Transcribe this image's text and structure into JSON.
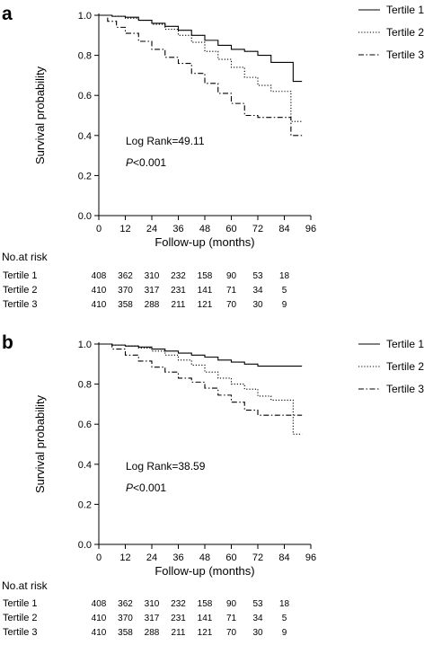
{
  "chart_data": [
    {
      "type": "line",
      "panel_label": "a",
      "xlabel": "Follow-up (months)",
      "ylabel": "Survival probability",
      "x_ticks": [
        0,
        12,
        24,
        36,
        48,
        60,
        72,
        84,
        96
      ],
      "y_ticks": [
        0.0,
        0.2,
        0.4,
        0.6,
        0.8,
        1.0
      ],
      "y_tick_labels": [
        "0.0",
        "0.2",
        "0.4",
        "0.6",
        "0.8",
        "1.0"
      ],
      "xlim": [
        0,
        96
      ],
      "ylim": [
        0,
        1.0
      ],
      "legend_position": "top-right",
      "annotation_logrank": "Log Rank=49.11",
      "annotation_p_italic": "P",
      "annotation_p_rest": "<0.001",
      "series": [
        {
          "name": "Tertile 1",
          "dash": "solid",
          "x": [
            0,
            6,
            12,
            18,
            24,
            30,
            36,
            42,
            48,
            54,
            60,
            66,
            72,
            78,
            84,
            88,
            92
          ],
          "y": [
            1.0,
            0.995,
            0.99,
            0.975,
            0.96,
            0.945,
            0.925,
            0.9,
            0.875,
            0.85,
            0.83,
            0.82,
            0.8,
            0.765,
            0.765,
            0.67,
            0.67
          ]
        },
        {
          "name": "Tertile 2",
          "dash": "dotted",
          "x": [
            0,
            6,
            12,
            18,
            24,
            30,
            36,
            42,
            48,
            54,
            60,
            66,
            72,
            78,
            84,
            87,
            90,
            92
          ],
          "y": [
            1.0,
            0.995,
            0.985,
            0.975,
            0.955,
            0.93,
            0.9,
            0.865,
            0.82,
            0.78,
            0.74,
            0.69,
            0.65,
            0.62,
            0.62,
            0.47,
            0.47,
            0.47
          ]
        },
        {
          "name": "Tertile 3",
          "dash": "dashdot",
          "x": [
            0,
            4,
            8,
            12,
            18,
            24,
            30,
            36,
            42,
            48,
            54,
            60,
            66,
            72,
            78,
            84,
            87,
            92
          ],
          "y": [
            1.0,
            0.97,
            0.94,
            0.91,
            0.87,
            0.83,
            0.79,
            0.76,
            0.71,
            0.66,
            0.61,
            0.56,
            0.5,
            0.49,
            0.49,
            0.49,
            0.4,
            0.4
          ]
        }
      ],
      "risk_table": {
        "title": "No.at risk",
        "rows": [
          {
            "label": "Tertile 1",
            "values": [
              408,
              362,
              310,
              232,
              158,
              90,
              53,
              18
            ]
          },
          {
            "label": "Tertile 2",
            "values": [
              410,
              370,
              317,
              231,
              141,
              71,
              34,
              5
            ]
          },
          {
            "label": "Tertile 3",
            "values": [
              410,
              358,
              288,
              211,
              121,
              70,
              30,
              9
            ]
          }
        ]
      }
    },
    {
      "type": "line",
      "panel_label": "b",
      "xlabel": "Follow-up (months)",
      "ylabel": "Survival probability",
      "x_ticks": [
        0,
        12,
        24,
        36,
        48,
        60,
        72,
        84,
        96
      ],
      "y_ticks": [
        0.0,
        0.2,
        0.4,
        0.6,
        0.8,
        1.0
      ],
      "y_tick_labels": [
        "0.0",
        "0.2",
        "0.4",
        "0.6",
        "0.8",
        "1.0"
      ],
      "xlim": [
        0,
        96
      ],
      "ylim": [
        0,
        1.0
      ],
      "legend_position": "top-right",
      "annotation_logrank": "Log Rank=38.59",
      "annotation_p_italic": "P",
      "annotation_p_rest": "<0.001",
      "series": [
        {
          "name": "Tertile 1",
          "dash": "solid",
          "x": [
            0,
            6,
            12,
            18,
            24,
            30,
            36,
            42,
            48,
            54,
            60,
            66,
            72,
            78,
            84,
            92
          ],
          "y": [
            1.0,
            0.995,
            0.99,
            0.985,
            0.975,
            0.965,
            0.955,
            0.945,
            0.935,
            0.92,
            0.91,
            0.9,
            0.89,
            0.89,
            0.89,
            0.89
          ]
        },
        {
          "name": "Tertile 2",
          "dash": "dotted",
          "x": [
            0,
            6,
            12,
            18,
            24,
            30,
            36,
            42,
            48,
            54,
            60,
            66,
            72,
            78,
            84,
            88,
            92
          ],
          "y": [
            1.0,
            0.995,
            0.99,
            0.98,
            0.965,
            0.945,
            0.92,
            0.895,
            0.86,
            0.83,
            0.8,
            0.775,
            0.74,
            0.72,
            0.72,
            0.55,
            0.55
          ]
        },
        {
          "name": "Tertile 3",
          "dash": "dashdot",
          "x": [
            0,
            6,
            12,
            18,
            24,
            30,
            36,
            42,
            48,
            54,
            60,
            66,
            72,
            78,
            84,
            92
          ],
          "y": [
            1.0,
            0.975,
            0.945,
            0.915,
            0.885,
            0.86,
            0.83,
            0.81,
            0.78,
            0.745,
            0.71,
            0.67,
            0.645,
            0.645,
            0.645,
            0.645
          ]
        }
      ],
      "risk_table": {
        "title": "No.at risk",
        "rows": [
          {
            "label": "Tertile 1",
            "values": [
              408,
              362,
              310,
              232,
              158,
              90,
              53,
              18
            ]
          },
          {
            "label": "Tertile 2",
            "values": [
              410,
              370,
              317,
              231,
              141,
              71,
              34,
              5
            ]
          },
          {
            "label": "Tertile 3",
            "values": [
              410,
              358,
              288,
              211,
              121,
              70,
              30,
              9
            ]
          }
        ]
      }
    }
  ]
}
